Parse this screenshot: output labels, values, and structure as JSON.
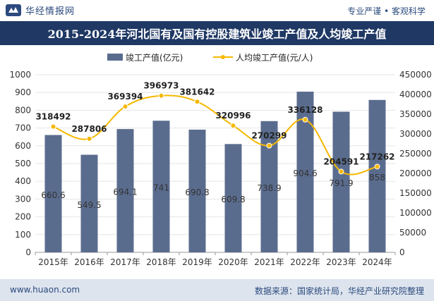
{
  "header": {
    "brand": "华经情报网",
    "tagline": "专业严谨 • 客观科学"
  },
  "footer": {
    "website": "www.huaon.com",
    "source": "数据来源：国家统计局，华经产业研究院整理"
  },
  "colors": {
    "bar": "#5a6c8e",
    "line": "#f5b800",
    "title_bg": "#1f3864",
    "footer_bg": "#dde4ee"
  },
  "chart_data": {
    "type": "bar",
    "title": "2015-2024年河北国有及国有控股建筑业竣工产值及人均竣工产值",
    "categories": [
      "2015年",
      "2016年",
      "2017年",
      "2018年",
      "2019年",
      "2020年",
      "2021年",
      "2022年",
      "2023年",
      "2024年"
    ],
    "series": [
      {
        "name": "竣工产值(亿元)",
        "type": "bar",
        "axis": "left",
        "values": [
          660.6,
          549.5,
          694.1,
          741,
          690.8,
          609.8,
          738.9,
          904.6,
          791.9,
          858
        ],
        "labels": [
          "660.6",
          "549.5",
          "694.1",
          "741",
          "690.8",
          "609.8",
          "738.9",
          "904.6",
          "791.9",
          "858"
        ]
      },
      {
        "name": "人均竣工产值(元/人)",
        "type": "line",
        "axis": "right",
        "values": [
          318492,
          287806,
          369394,
          396973,
          381642,
          320996,
          270299,
          336128,
          204591,
          217262
        ],
        "labels": [
          "318492",
          "287806",
          "369394",
          "396973",
          "381642",
          "320996",
          "270299",
          "336128",
          "204591",
          "217262"
        ]
      }
    ],
    "left_axis": {
      "min": 0,
      "max": 1000,
      "step": 100,
      "ticks": [
        "0",
        "100",
        "200",
        "300",
        "400",
        "500",
        "600",
        "700",
        "800",
        "900",
        "1000"
      ]
    },
    "right_axis": {
      "min": 0,
      "max": 450000,
      "step": 50000,
      "ticks": [
        "0",
        "50000",
        "100000",
        "150000",
        "200000",
        "250000",
        "300000",
        "350000",
        "400000",
        "450000"
      ]
    },
    "legend_position": "top-center"
  }
}
